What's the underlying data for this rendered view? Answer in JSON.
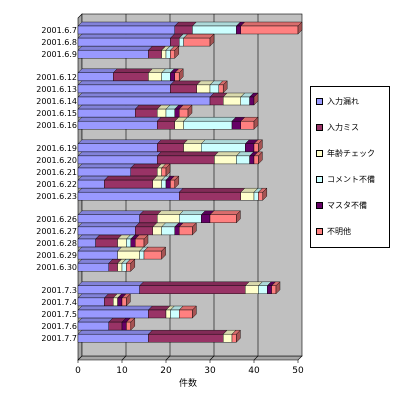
{
  "chart_data": {
    "type": "bar",
    "orientation": "horizontal",
    "stacked": true,
    "bar_style": "3d",
    "title": "",
    "xlabel": "件数",
    "ylabel": "",
    "xlim": [
      0,
      50
    ],
    "x_ticks": [
      "0",
      "10",
      "20",
      "30",
      "40",
      "50"
    ],
    "grid": true,
    "legend_position": "right",
    "background_color": "#c0c0c0",
    "categories": [
      "2001.6.7",
      "2001.6.8",
      "2001.6.9",
      "2001.6.12",
      "2001.6.13",
      "2001.6.14",
      "2001.6.15",
      "2001.6.16",
      "2001.6.19",
      "2001.6.20",
      "2001.6.21",
      "2001.6.22",
      "2001.6.23",
      "2001.6.26",
      "2001.6.27",
      "2001.6.28",
      "2001.6.29",
      "2001.6.30",
      "2001.7.3",
      "2001.7.4",
      "2001.7.5",
      "2001.7.6",
      "2001.7.7"
    ],
    "series": [
      {
        "name": "入力漏れ",
        "color": "#9999ff",
        "values": [
          22,
          21,
          16,
          8,
          21,
          30,
          13,
          18,
          18,
          18,
          12,
          6,
          23,
          14,
          13,
          4,
          9,
          7,
          14,
          6,
          16,
          7,
          16
        ]
      },
      {
        "name": "入力ミス",
        "color": "#993366",
        "values": [
          4,
          2,
          3,
          8,
          6,
          3,
          5,
          4,
          6,
          13,
          6,
          11,
          14,
          4,
          4,
          5,
          0,
          2,
          24,
          2,
          4,
          3,
          17
        ]
      },
      {
        "name": "年齢チェック",
        "color": "#ffffcc",
        "values": [
          0,
          0,
          1,
          3,
          3,
          4,
          2,
          2,
          4,
          5,
          1,
          2,
          3,
          5,
          2,
          2,
          5,
          1,
          3,
          1,
          1,
          0,
          2
        ]
      },
      {
        "name": "コメント不備",
        "color": "#ccffff",
        "values": [
          10,
          1,
          1,
          2,
          2,
          2,
          2,
          11,
          10,
          3,
          0,
          1,
          1,
          5,
          3,
          1,
          1,
          1,
          2,
          0,
          2,
          0,
          0
        ]
      },
      {
        "name": "マスタ不備",
        "color": "#660066",
        "values": [
          1,
          0,
          0,
          1,
          0,
          1,
          1,
          2,
          2,
          1,
          0,
          1,
          0,
          2,
          1,
          1,
          0,
          0,
          1,
          1,
          0,
          1,
          0
        ]
      },
      {
        "name": "不明他",
        "color": "#ff8080",
        "values": [
          13,
          6,
          1,
          1,
          1,
          0,
          2,
          3,
          1,
          1,
          1,
          1,
          1,
          6,
          3,
          2,
          4,
          1,
          1,
          1,
          3,
          1,
          1
        ]
      }
    ]
  }
}
